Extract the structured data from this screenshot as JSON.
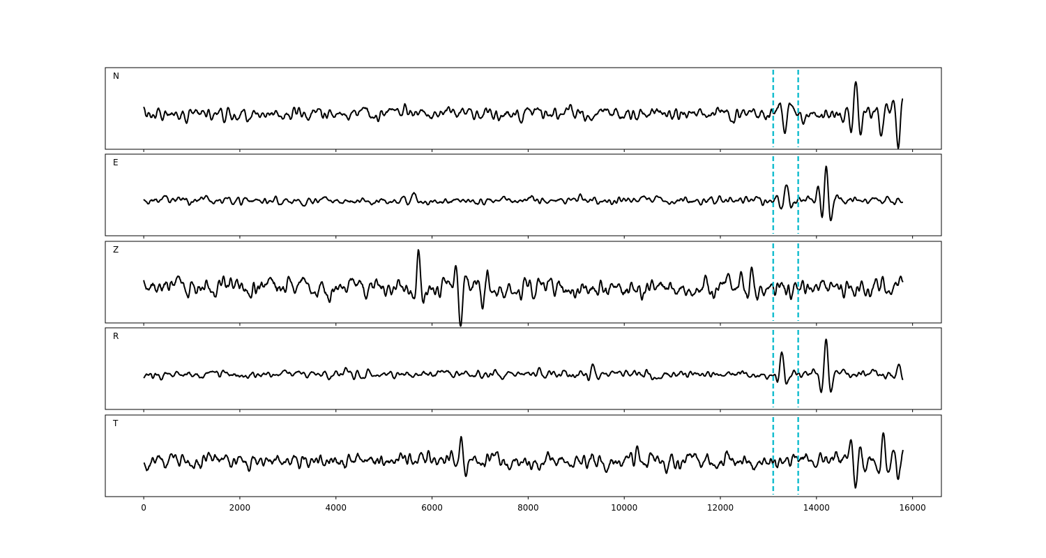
{
  "chart_data": {
    "type": "line",
    "subtype": "multi-panel waveform, shared x-axis",
    "x_range": [
      0,
      15800
    ],
    "xlim": [
      -800,
      16600
    ],
    "x_ticks": [
      0,
      2000,
      4000,
      6000,
      8000,
      10000,
      12000,
      14000,
      16000
    ],
    "x_tick_labels": [
      "0",
      "2000",
      "4000",
      "6000",
      "8000",
      "10000",
      "12000",
      "14000",
      "16000"
    ],
    "y_ticks_shown": false,
    "grid": false,
    "legend": "none",
    "trace_color": "#000000",
    "marker_color": "#17becf",
    "markers": [
      {
        "x": 13100,
        "style": "dashed"
      },
      {
        "x": 13620,
        "style": "dashed"
      }
    ],
    "panels": [
      {
        "label": "N",
        "noise_amplitude": 0.28,
        "events": [
          {
            "x": 14820,
            "amplitude": 1.0
          },
          {
            "x": 15700,
            "amplitude": -0.75
          },
          {
            "x": 15350,
            "amplitude": -0.6
          },
          {
            "x": 13350,
            "amplitude": -0.6
          }
        ]
      },
      {
        "label": "E",
        "noise_amplitude": 0.18,
        "events": [
          {
            "x": 14200,
            "amplitude": 1.0
          },
          {
            "x": 13380,
            "amplitude": 0.5
          },
          {
            "x": 14050,
            "amplitude": 0.4
          },
          {
            "x": 5620,
            "amplitude": 0.3
          }
        ]
      },
      {
        "label": "Z",
        "noise_amplitude": 0.42,
        "events": [
          {
            "x": 6600,
            "amplitude": -0.9
          },
          {
            "x": 5720,
            "amplitude": 0.85
          },
          {
            "x": 7050,
            "amplitude": -0.8
          },
          {
            "x": 12650,
            "amplitude": 0.6
          }
        ]
      },
      {
        "label": "R",
        "noise_amplitude": 0.18,
        "events": [
          {
            "x": 14200,
            "amplitude": 1.0
          },
          {
            "x": 13280,
            "amplitude": 0.55
          },
          {
            "x": 15700,
            "amplitude": 0.35
          },
          {
            "x": 9350,
            "amplitude": 0.3
          }
        ]
      },
      {
        "label": "T",
        "noise_amplitude": 0.42,
        "events": [
          {
            "x": 14820,
            "amplitude": -0.85
          },
          {
            "x": 6600,
            "amplitude": 0.75
          },
          {
            "x": 15400,
            "amplitude": 0.65
          },
          {
            "x": 15700,
            "amplitude": -0.6
          }
        ]
      }
    ]
  }
}
